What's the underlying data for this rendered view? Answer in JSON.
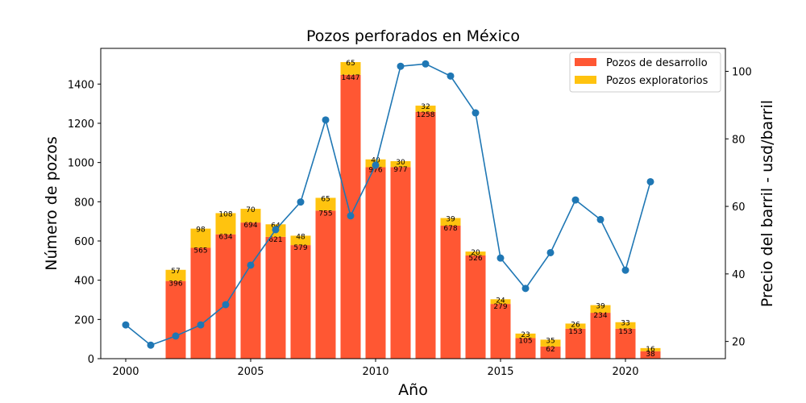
{
  "chart_data": {
    "type": "bar",
    "title": "Pozos perforados en México",
    "xlabel": "Año",
    "ylabel": "Número de pozos",
    "y2label": "Precio del barril - usd/barril",
    "xlim": [
      1999.0,
      2024.0
    ],
    "ylim": [
      0,
      1582
    ],
    "y2lim": [
      14.9,
      106.8
    ],
    "x_ticks": [
      2000,
      2005,
      2010,
      2015,
      2020
    ],
    "y_ticks": [
      0,
      200,
      400,
      600,
      800,
      1000,
      1200,
      1400
    ],
    "y2_ticks": [
      20,
      40,
      60,
      80,
      100
    ],
    "categories": [
      2002,
      2003,
      2004,
      2005,
      2006,
      2007,
      2008,
      2009,
      2010,
      2011,
      2012,
      2013,
      2014,
      2015,
      2016,
      2017,
      2018,
      2019,
      2020,
      2021
    ],
    "series": [
      {
        "name": "Pozos de desarrollo",
        "color": "#ff5733",
        "values": [
          396,
          565,
          634,
          694,
          621,
          579,
          755,
          1447,
          976,
          977,
          1258,
          678,
          526,
          279,
          105,
          62,
          153,
          234,
          153,
          38
        ]
      },
      {
        "name": "Pozos exploratorios",
        "color": "#ffc30f",
        "values": [
          57,
          98,
          108,
          70,
          64,
          48,
          65,
          65,
          40,
          30,
          32,
          39,
          20,
          24,
          23,
          35,
          26,
          39,
          33,
          16
        ]
      }
    ],
    "price_line": {
      "color": "#1f77b4",
      "x": [
        2000,
        2001,
        2002,
        2003,
        2004,
        2005,
        2006,
        2007,
        2008,
        2009,
        2010,
        2011,
        2012,
        2013,
        2014,
        2015,
        2016,
        2017,
        2018,
        2019,
        2020,
        2021
      ],
      "y": [
        24.9,
        18.9,
        21.6,
        24.9,
        30.9,
        42.6,
        53.1,
        61.3,
        85.6,
        57.2,
        72.2,
        101.5,
        102.2,
        98.6,
        87.7,
        44.7,
        35.7,
        46.3,
        61.9,
        56.1,
        41.1,
        67.3
      ]
    },
    "legend": {
      "position": "top-right"
    }
  }
}
